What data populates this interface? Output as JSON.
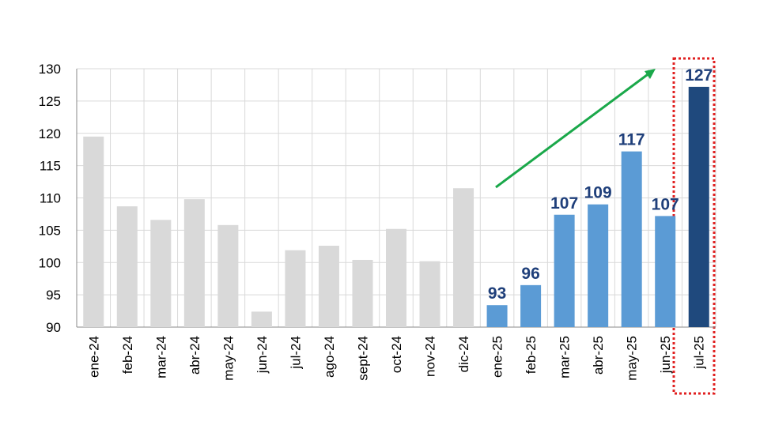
{
  "chart_data": {
    "type": "bar",
    "categories": [
      "ene-24",
      "feb-24",
      "mar-24",
      "abr-24",
      "may-24",
      "jun-24",
      "jul-24",
      "ago-24",
      "sept-24",
      "oct-24",
      "nov-24",
      "dic-24",
      "ene-25",
      "feb-25",
      "mar-25",
      "abr-25",
      "may-25",
      "jun-25",
      "jul-25"
    ],
    "values": [
      119.5,
      108.7,
      106.6,
      109.8,
      105.8,
      92.4,
      101.9,
      102.6,
      100.4,
      105.2,
      100.2,
      111.5,
      93.4,
      96.5,
      107.4,
      109,
      117.2,
      107.2,
      127.2
    ],
    "value_labels": [
      null,
      null,
      null,
      null,
      null,
      null,
      null,
      null,
      null,
      null,
      null,
      null,
      "93",
      "96",
      "107",
      "109",
      "117",
      "107",
      "127"
    ],
    "colors": [
      "#d9d9d9",
      "#d9d9d9",
      "#d9d9d9",
      "#d9d9d9",
      "#d9d9d9",
      "#d9d9d9",
      "#d9d9d9",
      "#d9d9d9",
      "#d9d9d9",
      "#d9d9d9",
      "#d9d9d9",
      "#d9d9d9",
      "#5b9bd5",
      "#5b9bd5",
      "#5b9bd5",
      "#5b9bd5",
      "#5b9bd5",
      "#5b9bd5",
      "#1f497d"
    ],
    "ylim": [
      90,
      130
    ],
    "yticks": [
      90,
      95,
      100,
      105,
      110,
      115,
      120,
      125,
      130
    ],
    "grid": true
  }
}
